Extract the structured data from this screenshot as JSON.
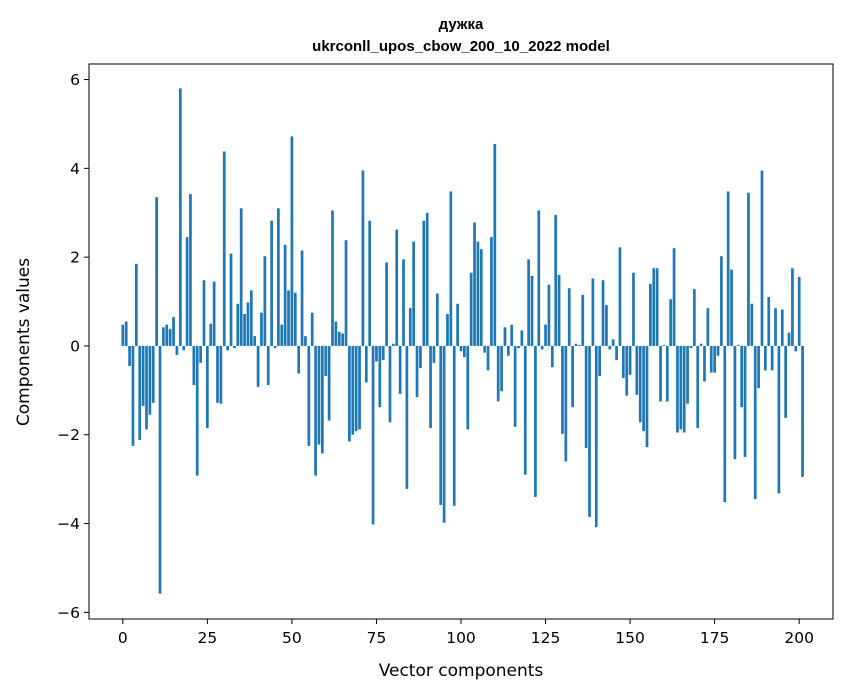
{
  "chart_data": {
    "type": "bar",
    "title": "дужка",
    "subtitle": "ukrconll_upos_cbow_200_10_2022 model",
    "xlabel": "Vector components",
    "ylabel": "Components values",
    "xlim": [
      -10,
      210
    ],
    "ylim": [
      -6.15,
      6.35
    ],
    "xticks": [
      0,
      25,
      50,
      75,
      100,
      125,
      150,
      175,
      200
    ],
    "yticks": [
      -6,
      -4,
      -2,
      0,
      2,
      4,
      6
    ],
    "xtick_labels": [
      "0",
      "25",
      "50",
      "75",
      "100",
      "125",
      "150",
      "175",
      "200"
    ],
    "ytick_labels": [
      "−6",
      "−4",
      "−2",
      "0",
      "2",
      "4",
      "6"
    ],
    "bar_color": "#1f77b4",
    "values": [
      0.48,
      0.55,
      -0.45,
      -2.25,
      1.85,
      -2.12,
      -1.35,
      -1.88,
      -1.55,
      -1.28,
      3.35,
      -5.58,
      0.42,
      0.48,
      0.38,
      0.65,
      -0.2,
      5.8,
      -0.1,
      2.45,
      3.42,
      -0.88,
      -2.92,
      -0.38,
      1.48,
      -1.85,
      0.5,
      1.45,
      -1.28,
      -1.3,
      4.38,
      -0.1,
      2.08,
      -0.05,
      0.95,
      3.1,
      0.72,
      0.98,
      1.25,
      0.22,
      -0.92,
      0.75,
      2.02,
      -0.88,
      2.82,
      -0.05,
      3.1,
      0.48,
      2.28,
      1.25,
      4.72,
      1.2,
      -0.62,
      2.15,
      0.22,
      -2.25,
      0.75,
      -2.92,
      -2.22,
      -2.42,
      -0.68,
      -1.68,
      3.05,
      0.55,
      0.32,
      0.28,
      2.38,
      -2.15,
      -2.0,
      -1.92,
      -1.88,
      3.95,
      -0.82,
      2.82,
      -4.02,
      -0.35,
      -1.38,
      -0.32,
      1.88,
      -1.72,
      0.05,
      2.62,
      -1.08,
      1.95,
      -3.22,
      0.85,
      2.35,
      -1.15,
      -0.5,
      2.82,
      3.0,
      -1.85,
      -0.38,
      1.18,
      -3.58,
      -3.98,
      0.72,
      3.48,
      -3.6,
      0.95,
      -0.12,
      -0.25,
      -1.88,
      1.65,
      2.78,
      2.35,
      2.18,
      -0.15,
      -0.55,
      2.45,
      4.55,
      -1.25,
      -1.02,
      0.42,
      -0.22,
      0.48,
      -1.82,
      -0.05,
      0.35,
      -2.9,
      1.95,
      1.58,
      -3.4,
      3.05,
      -0.08,
      0.48,
      1.38,
      -0.48,
      2.95,
      1.6,
      -1.98,
      -2.6,
      1.3,
      -1.38,
      0.05,
      0.02,
      1.15,
      -2.3,
      -3.85,
      1.52,
      -4.08,
      -0.68,
      1.48,
      0.92,
      -0.08,
      0.15,
      -0.32,
      2.22,
      -0.72,
      -1.12,
      -0.65,
      1.65,
      -1.1,
      -1.72,
      -1.92,
      -2.28,
      1.4,
      1.75,
      1.75,
      -1.25,
      0.02,
      -1.25,
      1.05,
      2.2,
      -1.95,
      -1.88,
      -1.95,
      -1.3,
      -0.05,
      1.28,
      -1.85,
      0.05,
      -0.8,
      0.85,
      -0.6,
      -0.6,
      -0.22,
      2.02,
      -3.52,
      3.48,
      1.72,
      -2.55,
      0.02,
      -1.38,
      -2.5,
      3.45,
      0.95,
      -3.45,
      -0.95,
      3.95,
      -0.55,
      1.1,
      -0.55,
      0.85,
      -3.32,
      0.82,
      -1.62,
      0.3,
      1.75,
      -0.12,
      1.55,
      -2.95
    ]
  }
}
